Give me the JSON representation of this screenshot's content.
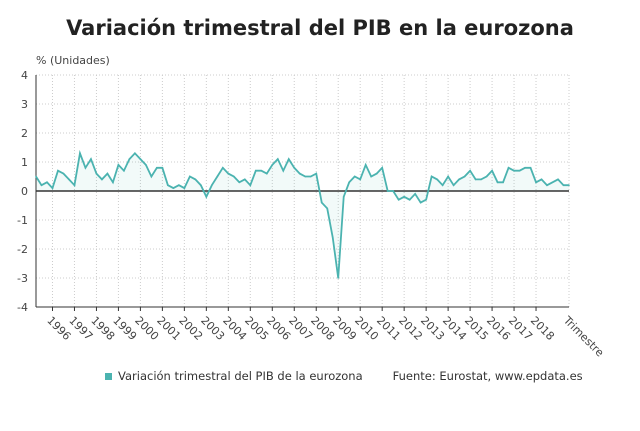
{
  "title": "Variación trimestral del PIB en la eurozona",
  "chart_data": {
    "type": "line",
    "title": "Variación trimestral del PIB en la eurozona",
    "ylabel": "% (Unidades)",
    "xlabel": "Trimestre",
    "ylim": [
      -4,
      4
    ],
    "yticks": [
      "4",
      "3",
      "2",
      "1",
      "0",
      "-1",
      "-2",
      "-3",
      "-4"
    ],
    "xticks": [
      "1996",
      "1997",
      "1998",
      "1999",
      "2000",
      "2001",
      "2002",
      "2003",
      "2004",
      "2005",
      "2006",
      "2007",
      "2008",
      "2009",
      "2010",
      "2011",
      "2012",
      "2013",
      "2014",
      "2015",
      "2016",
      "2017",
      "2018"
    ],
    "grid": true,
    "color": "#4bb3b0",
    "series": [
      {
        "name": "Variación trimestral del PIB de la eurozona",
        "values": [
          0.5,
          0.2,
          0.3,
          0.1,
          0.7,
          0.6,
          0.4,
          0.2,
          1.3,
          0.8,
          1.1,
          0.6,
          0.4,
          0.6,
          0.3,
          0.9,
          0.7,
          1.1,
          1.3,
          1.1,
          0.9,
          0.5,
          0.8,
          0.8,
          0.2,
          0.1,
          0.2,
          0.1,
          0.5,
          0.4,
          0.2,
          -0.2,
          0.2,
          0.5,
          0.8,
          0.6,
          0.5,
          0.3,
          0.4,
          0.2,
          0.7,
          0.7,
          0.6,
          0.9,
          1.1,
          0.7,
          1.1,
          0.8,
          0.6,
          0.5,
          0.5,
          0.6,
          -0.4,
          -0.6,
          -1.6,
          -3.0,
          -0.2,
          0.3,
          0.5,
          0.4,
          0.9,
          0.5,
          0.6,
          0.8,
          0.0,
          0.0,
          -0.3,
          -0.2,
          -0.3,
          -0.1,
          -0.4,
          -0.3,
          0.5,
          0.4,
          0.2,
          0.5,
          0.2,
          0.4,
          0.5,
          0.7,
          0.4,
          0.4,
          0.5,
          0.7,
          0.3,
          0.3,
          0.8,
          0.7,
          0.7,
          0.8,
          0.8,
          0.3,
          0.4,
          0.2,
          0.3,
          0.4,
          0.2,
          0.2
        ]
      }
    ],
    "legend_position": "bottom",
    "source": "Fuente: Eurostat, www.epdata.es"
  }
}
